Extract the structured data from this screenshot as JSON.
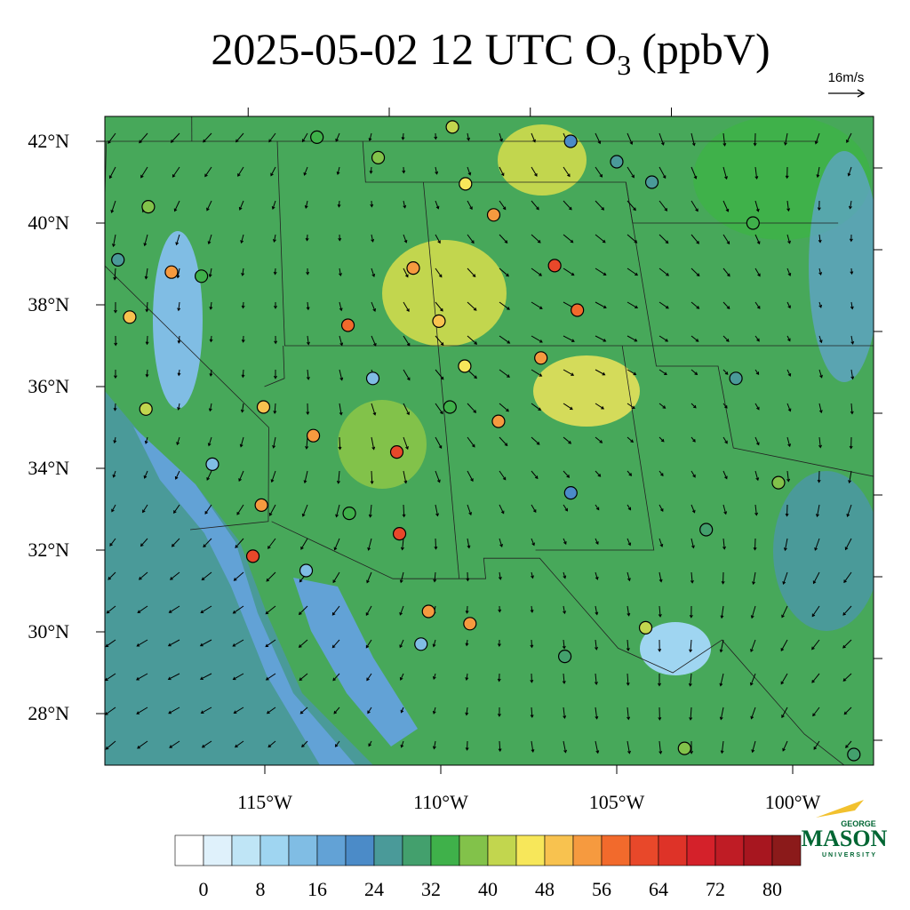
{
  "title": {
    "prefix": "2025-05-02 12 UTC O",
    "subscript": "3",
    "suffix": "(ppbV)"
  },
  "wind_reference": "16m/s",
  "lat_ticks": [
    {
      "value": 42,
      "label": "42°N"
    },
    {
      "value": 40,
      "label": "40°N"
    },
    {
      "value": 38,
      "label": "38°N"
    },
    {
      "value": 36,
      "label": "36°N"
    },
    {
      "value": 34,
      "label": "34°N"
    },
    {
      "value": 32,
      "label": "32°N"
    },
    {
      "value": 30,
      "label": "30°N"
    },
    {
      "value": 28,
      "label": "28°N"
    }
  ],
  "lon_ticks": [
    {
      "value": -115,
      "label": "115°W"
    },
    {
      "value": -110,
      "label": "110°W"
    },
    {
      "value": -105,
      "label": "105°W"
    },
    {
      "value": -100,
      "label": "100°W"
    }
  ],
  "colorbar": {
    "levels": [
      0,
      4,
      8,
      12,
      16,
      20,
      24,
      28,
      32,
      36,
      40,
      44,
      48,
      52,
      56,
      60,
      64,
      68,
      72,
      76,
      80
    ],
    "colors": [
      "#ffffff",
      "#dff1fb",
      "#bfe5f6",
      "#9fd5f1",
      "#80bde4",
      "#62a2d6",
      "#4b8bc8",
      "#4a9a99",
      "#43a06d",
      "#3fb14a",
      "#82c24a",
      "#c2d64e",
      "#f7e75a",
      "#f8c24f",
      "#f69a3f",
      "#f26a2c",
      "#e8482a",
      "#de3328",
      "#d4212a",
      "#bf1c25",
      "#a7161f",
      "#8b1a1a"
    ],
    "ticks": [
      0,
      8,
      16,
      24,
      32,
      40,
      48,
      56,
      64,
      72,
      80
    ]
  },
  "stations": [
    {
      "lon": -107.8,
      "lat": 42.35,
      "value": 42
    },
    {
      "lon": -103.7,
      "lat": 42.0,
      "value": 22
    },
    {
      "lon": -102.2,
      "lat": 41.5,
      "value": 24
    },
    {
      "lon": -101.1,
      "lat": 41.0,
      "value": 24
    },
    {
      "lon": -106.7,
      "lat": 40.2,
      "value": 52
    },
    {
      "lon": -107.55,
      "lat": 40.96,
      "value": 46
    },
    {
      "lon": -104.85,
      "lat": 38.96,
      "value": 60
    },
    {
      "lon": -104.3,
      "lat": 37.87,
      "value": 56
    },
    {
      "lon": -105.7,
      "lat": 36.7,
      "value": 54
    },
    {
      "lon": -111.9,
      "lat": 37.5,
      "value": 56
    },
    {
      "lon": -110.6,
      "lat": 34.4,
      "value": 60
    },
    {
      "lon": -110.7,
      "lat": 32.4,
      "value": 60
    },
    {
      "lon": -115.2,
      "lat": 31.85,
      "value": 62
    },
    {
      "lon": -114.9,
      "lat": 33.1,
      "value": 54
    },
    {
      "lon": -108.8,
      "lat": 30.2,
      "value": 52
    },
    {
      "lon": -110.0,
      "lat": 30.5,
      "value": 52
    },
    {
      "lon": -119.07,
      "lat": 37.7,
      "value": 48
    },
    {
      "lon": -117.7,
      "lat": 38.8,
      "value": 52
    },
    {
      "lon": -114.75,
      "lat": 35.5,
      "value": 48
    },
    {
      "lon": -107.3,
      "lat": 35.15,
      "value": 54
    },
    {
      "lon": -111.2,
      "lat": 36.2,
      "value": 12
    },
    {
      "lon": -110.3,
      "lat": 29.7,
      "value": 14
    },
    {
      "lon": -113.6,
      "lat": 31.5,
      "value": 14
    },
    {
      "lon": -116.4,
      "lat": 34.1,
      "value": 14
    },
    {
      "lon": -119.5,
      "lat": 39.1,
      "value": 24
    },
    {
      "lon": -97.9,
      "lat": 40.0,
      "value": 34
    },
    {
      "lon": -99.5,
      "lat": 36.2,
      "value": 26
    },
    {
      "lon": -98.8,
      "lat": 33.65,
      "value": 36
    },
    {
      "lon": -101.3,
      "lat": 32.5,
      "value": 30
    },
    {
      "lon": -103.0,
      "lat": 27.15,
      "value": 38
    },
    {
      "lon": -98.2,
      "lat": 27.0,
      "value": 28
    },
    {
      "lon": -106.1,
      "lat": 29.4,
      "value": 30
    },
    {
      "lon": -108.8,
      "lat": 35.5,
      "value": 34
    },
    {
      "lon": -112.6,
      "lat": 42.1,
      "value": 34
    },
    {
      "lon": -110.5,
      "lat": 41.6,
      "value": 38
    },
    {
      "lon": -109.6,
      "lat": 38.9,
      "value": 54
    },
    {
      "lon": -108.9,
      "lat": 37.6,
      "value": 48
    },
    {
      "lon": -113.2,
      "lat": 34.8,
      "value": 54
    },
    {
      "lon": -118.5,
      "lat": 40.4,
      "value": 36
    },
    {
      "lon": -116.7,
      "lat": 38.7,
      "value": 34
    },
    {
      "lon": -118.5,
      "lat": 35.45,
      "value": 42
    },
    {
      "lon": -105.3,
      "lat": 33.4,
      "value": 22
    },
    {
      "lon": -103.6,
      "lat": 30.1,
      "value": 40
    },
    {
      "lon": -112.2,
      "lat": 32.9,
      "value": 34
    },
    {
      "lon": -108.2,
      "lat": 36.5,
      "value": 46
    }
  ],
  "logo": {
    "top": "GEORGE",
    "name": "MASON",
    "bottom": "UNIVERSITY"
  }
}
